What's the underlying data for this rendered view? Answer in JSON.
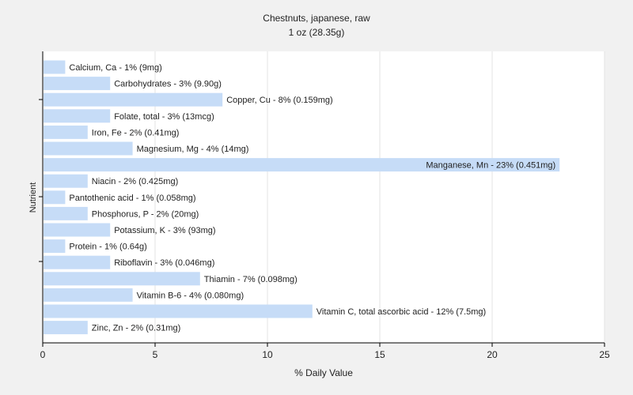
{
  "chart_data": {
    "type": "bar",
    "orientation": "horizontal",
    "title": "Chestnuts, japanese, raw",
    "subtitle": "1 oz (28.35g)",
    "xlabel": "% Daily Value",
    "ylabel": "Nutrient",
    "xlim": [
      0,
      25
    ],
    "xticks": [
      "0",
      "5",
      "10",
      "15",
      "20",
      "25"
    ],
    "grid": true,
    "bar_color": "#c6dcf7",
    "categories": [
      "Calcium, Ca",
      "Carbohydrates",
      "Copper, Cu",
      "Folate, total",
      "Iron, Fe",
      "Magnesium, Mg",
      "Manganese, Mn",
      "Niacin",
      "Pantothenic acid",
      "Phosphorus, P",
      "Potassium, K",
      "Protein",
      "Riboflavin",
      "Thiamin",
      "Vitamin B-6",
      "Vitamin C, total ascorbic acid",
      "Zinc, Zn"
    ],
    "values": [
      1,
      3,
      8,
      3,
      2,
      4,
      23,
      2,
      1,
      2,
      3,
      1,
      3,
      7,
      4,
      12,
      2
    ],
    "labels": [
      "Calcium, Ca - 1% (9mg)",
      "Carbohydrates - 3% (9.90g)",
      "Copper, Cu - 8% (0.159mg)",
      "Folate, total - 3% (13mcg)",
      "Iron, Fe - 2% (0.41mg)",
      "Magnesium, Mg - 4% (14mg)",
      "Manganese, Mn - 23% (0.451mg)",
      "Niacin - 2% (0.425mg)",
      "Pantothenic acid - 1% (0.058mg)",
      "Phosphorus, P - 2% (20mg)",
      "Potassium, K - 3% (93mg)",
      "Protein - 1% (0.64g)",
      "Riboflavin - 3% (0.046mg)",
      "Thiamin - 7% (0.098mg)",
      "Vitamin B-6 - 4% (0.080mg)",
      "Vitamin C, total ascorbic acid - 12% (7.5mg)",
      "Zinc, Zn - 2% (0.31mg)"
    ]
  }
}
